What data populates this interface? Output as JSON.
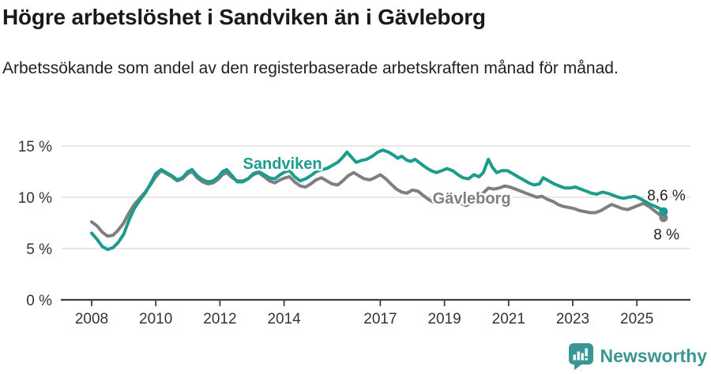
{
  "header": {
    "title": "Högre arbetslöshet i Sandviken än i Gävleborg",
    "subtitle": "Arbetssökande som andel av den registerbaserade arbetskraften månad för månad."
  },
  "footer": {
    "brand": "Newsworthy",
    "logo_icon": "bar-chart-speech-bubble-icon"
  },
  "colors": {
    "sandviken": "#1b9c8c",
    "gavleborg": "#7f7f7f",
    "grid": "#dbdbdb",
    "axis": "#3f3f3f",
    "tick_text": "#333333",
    "annotation_text": "#222222",
    "brand": "#3a9595"
  },
  "chart_data": {
    "type": "line",
    "unit": "%",
    "grid": "horizontal",
    "legend_position": "inline-labels",
    "x_axis": {
      "tick_years": [
        2008,
        2010,
        2012,
        2014,
        2017,
        2019,
        2021,
        2023,
        2025
      ],
      "range": [
        2008,
        2026.6
      ]
    },
    "y_axis": {
      "ticks": [
        {
          "value": 15,
          "label": "15 %"
        },
        {
          "value": 10,
          "label": "10 %"
        },
        {
          "value": 5,
          "label": "5 %"
        },
        {
          "value": 0,
          "label": "0 %"
        }
      ],
      "range": [
        0,
        16.9
      ]
    },
    "series": [
      {
        "name": "Gävleborg",
        "color": "#7f7f7f",
        "end_label": "8 %",
        "end_value": 8.0,
        "label_pos": [
          2019.85,
          9.4
        ],
        "end_label_pos": [
          2025.52,
          5.9
        ],
        "points": [
          [
            2008.0,
            7.6
          ],
          [
            2008.17,
            7.2
          ],
          [
            2008.33,
            6.6
          ],
          [
            2008.5,
            6.2
          ],
          [
            2008.67,
            6.3
          ],
          [
            2008.83,
            6.8
          ],
          [
            2009.0,
            7.5
          ],
          [
            2009.17,
            8.5
          ],
          [
            2009.33,
            9.3
          ],
          [
            2009.5,
            9.9
          ],
          [
            2009.67,
            10.5
          ],
          [
            2009.83,
            11.2
          ],
          [
            2010.0,
            12.0
          ],
          [
            2010.17,
            12.6
          ],
          [
            2010.33,
            12.3
          ],
          [
            2010.5,
            12.0
          ],
          [
            2010.67,
            11.6
          ],
          [
            2010.83,
            11.8
          ],
          [
            2011.0,
            12.3
          ],
          [
            2011.13,
            12.5
          ],
          [
            2011.29,
            11.9
          ],
          [
            2011.46,
            11.5
          ],
          [
            2011.63,
            11.3
          ],
          [
            2011.79,
            11.4
          ],
          [
            2011.96,
            11.8
          ],
          [
            2012.08,
            12.2
          ],
          [
            2012.21,
            12.4
          ],
          [
            2012.38,
            11.9
          ],
          [
            2012.54,
            11.6
          ],
          [
            2012.71,
            11.6
          ],
          [
            2012.88,
            11.8
          ],
          [
            2013.04,
            12.2
          ],
          [
            2013.21,
            12.4
          ],
          [
            2013.38,
            12.0
          ],
          [
            2013.54,
            11.6
          ],
          [
            2013.71,
            11.4
          ],
          [
            2013.88,
            11.7
          ],
          [
            2014.04,
            11.9
          ],
          [
            2014.17,
            12.0
          ],
          [
            2014.33,
            11.5
          ],
          [
            2014.5,
            11.1
          ],
          [
            2014.67,
            11.0
          ],
          [
            2014.83,
            11.3
          ],
          [
            2015.0,
            11.7
          ],
          [
            2015.17,
            11.9
          ],
          [
            2015.33,
            11.6
          ],
          [
            2015.5,
            11.3
          ],
          [
            2015.67,
            11.2
          ],
          [
            2015.83,
            11.6
          ],
          [
            2016.0,
            12.1
          ],
          [
            2016.17,
            12.4
          ],
          [
            2016.33,
            12.1
          ],
          [
            2016.5,
            11.8
          ],
          [
            2016.67,
            11.7
          ],
          [
            2016.83,
            11.9
          ],
          [
            2017.0,
            12.2
          ],
          [
            2017.17,
            11.8
          ],
          [
            2017.33,
            11.3
          ],
          [
            2017.5,
            10.8
          ],
          [
            2017.67,
            10.5
          ],
          [
            2017.83,
            10.4
          ],
          [
            2018.0,
            10.7
          ],
          [
            2018.17,
            10.6
          ],
          [
            2018.33,
            10.2
          ],
          [
            2018.5,
            9.8
          ],
          [
            2018.67,
            9.5
          ],
          [
            2018.83,
            9.4
          ],
          [
            2019.0,
            9.7
          ],
          [
            2019.17,
            9.8
          ],
          [
            2019.33,
            9.6
          ],
          [
            2019.5,
            9.4
          ],
          [
            2019.67,
            9.2
          ],
          [
            2019.83,
            9.4
          ],
          [
            2020.0,
            9.8
          ],
          [
            2020.17,
            10.3
          ],
          [
            2020.37,
            10.9
          ],
          [
            2020.54,
            10.8
          ],
          [
            2020.71,
            10.9
          ],
          [
            2020.88,
            11.1
          ],
          [
            2021.04,
            11.0
          ],
          [
            2021.21,
            10.8
          ],
          [
            2021.38,
            10.6
          ],
          [
            2021.54,
            10.4
          ],
          [
            2021.71,
            10.2
          ],
          [
            2021.88,
            10.0
          ],
          [
            2022.04,
            10.1
          ],
          [
            2022.21,
            9.8
          ],
          [
            2022.38,
            9.6
          ],
          [
            2022.54,
            9.3
          ],
          [
            2022.71,
            9.1
          ],
          [
            2022.88,
            9.0
          ],
          [
            2023.04,
            8.9
          ],
          [
            2023.21,
            8.7
          ],
          [
            2023.38,
            8.6
          ],
          [
            2023.54,
            8.5
          ],
          [
            2023.71,
            8.5
          ],
          [
            2023.88,
            8.7
          ],
          [
            2024.04,
            9.0
          ],
          [
            2024.21,
            9.3
          ],
          [
            2024.38,
            9.1
          ],
          [
            2024.54,
            8.9
          ],
          [
            2024.71,
            8.8
          ],
          [
            2024.88,
            9.0
          ],
          [
            2025.04,
            9.2
          ],
          [
            2025.21,
            9.4
          ],
          [
            2025.38,
            9.1
          ],
          [
            2025.54,
            8.7
          ],
          [
            2025.71,
            8.3
          ],
          [
            2025.83,
            8.0
          ]
        ]
      },
      {
        "name": "Sandviken",
        "color": "#1b9c8c",
        "end_label": "8,6 %",
        "end_value": 8.6,
        "label_pos": [
          2013.95,
          12.77
        ],
        "end_label_pos": [
          2025.32,
          9.7
        ],
        "points": [
          [
            2008.0,
            6.5
          ],
          [
            2008.17,
            5.9
          ],
          [
            2008.33,
            5.2
          ],
          [
            2008.5,
            4.9
          ],
          [
            2008.67,
            5.1
          ],
          [
            2008.83,
            5.6
          ],
          [
            2009.0,
            6.4
          ],
          [
            2009.17,
            7.8
          ],
          [
            2009.33,
            8.9
          ],
          [
            2009.5,
            9.7
          ],
          [
            2009.67,
            10.4
          ],
          [
            2009.83,
            11.3
          ],
          [
            2010.0,
            12.3
          ],
          [
            2010.17,
            12.7
          ],
          [
            2010.33,
            12.4
          ],
          [
            2010.5,
            12.1
          ],
          [
            2010.67,
            11.7
          ],
          [
            2010.83,
            11.9
          ],
          [
            2011.0,
            12.5
          ],
          [
            2011.13,
            12.7
          ],
          [
            2011.29,
            12.1
          ],
          [
            2011.46,
            11.7
          ],
          [
            2011.63,
            11.5
          ],
          [
            2011.79,
            11.6
          ],
          [
            2011.96,
            12.0
          ],
          [
            2012.08,
            12.5
          ],
          [
            2012.21,
            12.7
          ],
          [
            2012.38,
            12.1
          ],
          [
            2012.54,
            11.5
          ],
          [
            2012.71,
            11.5
          ],
          [
            2012.88,
            11.8
          ],
          [
            2013.04,
            12.3
          ],
          [
            2013.21,
            12.5
          ],
          [
            2013.38,
            12.2
          ],
          [
            2013.54,
            11.9
          ],
          [
            2013.71,
            11.8
          ],
          [
            2013.88,
            12.2
          ],
          [
            2014.04,
            12.5
          ],
          [
            2014.17,
            12.6
          ],
          [
            2014.33,
            12.0
          ],
          [
            2014.5,
            11.6
          ],
          [
            2014.67,
            11.8
          ],
          [
            2014.83,
            12.1
          ],
          [
            2015.0,
            12.5
          ],
          [
            2015.17,
            12.7
          ],
          [
            2015.33,
            12.8
          ],
          [
            2015.5,
            13.1
          ],
          [
            2015.67,
            13.4
          ],
          [
            2015.83,
            13.9
          ],
          [
            2015.96,
            14.4
          ],
          [
            2016.13,
            13.8
          ],
          [
            2016.25,
            13.4
          ],
          [
            2016.42,
            13.6
          ],
          [
            2016.58,
            13.7
          ],
          [
            2016.75,
            14.0
          ],
          [
            2016.92,
            14.4
          ],
          [
            2017.08,
            14.6
          ],
          [
            2017.25,
            14.4
          ],
          [
            2017.42,
            14.1
          ],
          [
            2017.54,
            13.8
          ],
          [
            2017.67,
            14.0
          ],
          [
            2017.83,
            13.6
          ],
          [
            2017.96,
            13.5
          ],
          [
            2018.08,
            13.7
          ],
          [
            2018.25,
            13.3
          ],
          [
            2018.42,
            12.9
          ],
          [
            2018.58,
            12.6
          ],
          [
            2018.75,
            12.4
          ],
          [
            2018.92,
            12.6
          ],
          [
            2019.08,
            12.8
          ],
          [
            2019.25,
            12.6
          ],
          [
            2019.42,
            12.2
          ],
          [
            2019.58,
            11.9
          ],
          [
            2019.75,
            11.8
          ],
          [
            2019.92,
            12.2
          ],
          [
            2020.08,
            12.0
          ],
          [
            2020.21,
            12.4
          ],
          [
            2020.37,
            13.7
          ],
          [
            2020.5,
            12.9
          ],
          [
            2020.63,
            12.4
          ],
          [
            2020.79,
            12.6
          ],
          [
            2020.96,
            12.6
          ],
          [
            2021.13,
            12.3
          ],
          [
            2021.29,
            12.0
          ],
          [
            2021.46,
            11.7
          ],
          [
            2021.63,
            11.4
          ],
          [
            2021.79,
            11.2
          ],
          [
            2021.96,
            11.3
          ],
          [
            2022.08,
            11.9
          ],
          [
            2022.25,
            11.6
          ],
          [
            2022.42,
            11.3
          ],
          [
            2022.58,
            11.1
          ],
          [
            2022.75,
            10.9
          ],
          [
            2022.92,
            10.9
          ],
          [
            2023.08,
            11.0
          ],
          [
            2023.25,
            10.8
          ],
          [
            2023.42,
            10.6
          ],
          [
            2023.58,
            10.4
          ],
          [
            2023.75,
            10.3
          ],
          [
            2023.92,
            10.5
          ],
          [
            2024.08,
            10.4
          ],
          [
            2024.25,
            10.2
          ],
          [
            2024.42,
            10.0
          ],
          [
            2024.58,
            9.9
          ],
          [
            2024.75,
            10.0
          ],
          [
            2024.92,
            10.1
          ],
          [
            2025.08,
            9.9
          ],
          [
            2025.25,
            9.6
          ],
          [
            2025.42,
            9.3
          ],
          [
            2025.58,
            9.1
          ],
          [
            2025.71,
            8.9
          ],
          [
            2025.83,
            8.6
          ]
        ]
      }
    ]
  }
}
